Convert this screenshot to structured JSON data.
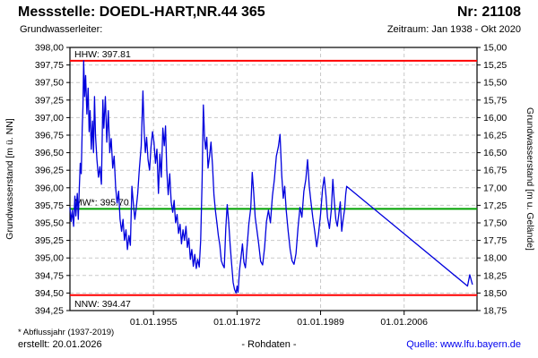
{
  "header": {
    "title": "Messstelle: DOEDL-HART,NR.44 365",
    "station_no": "Nr: 21108",
    "aquifer_label": "Grundwasserleiter:",
    "period": "Zeitraum: Jan 1938 - Okt 2020"
  },
  "footer": {
    "footnote": "* Abflussjahr (1937-2019)",
    "created": "erstellt:  20.01.2026",
    "center": "- Rohdaten -",
    "source": "Quelle: www.lfu.bayern.de"
  },
  "chart_data": {
    "type": "line",
    "title": "",
    "ylabel_left": "Grundwasserstand [m ü. NN]",
    "ylabel_right": "Grundwasserstand [m u. Gelände]",
    "ylim_left": [
      394.25,
      398.0
    ],
    "ylim_right": [
      18.75,
      15.0
    ],
    "xlim": [
      1938.0,
      2020.83
    ],
    "grid": true,
    "legend_position": "none",
    "x_ticks": [
      {
        "year": 1955,
        "label": "01.01.1955"
      },
      {
        "year": 1972,
        "label": "01.01.1972"
      },
      {
        "year": 1989,
        "label": "01.01.1989"
      },
      {
        "year": 2006,
        "label": "01.01.2006"
      }
    ],
    "y_ticks": [
      {
        "value": 398.0,
        "label_left": "398,00",
        "label_right": "15,00"
      },
      {
        "value": 397.75,
        "label_left": "397,75",
        "label_right": "15,25"
      },
      {
        "value": 397.5,
        "label_left": "397,50",
        "label_right": "15,50"
      },
      {
        "value": 397.25,
        "label_left": "397,25",
        "label_right": "15,75"
      },
      {
        "value": 397.0,
        "label_left": "397,00",
        "label_right": "16,00"
      },
      {
        "value": 396.75,
        "label_left": "396,75",
        "label_right": "16,25"
      },
      {
        "value": 396.5,
        "label_left": "396,50",
        "label_right": "16,50"
      },
      {
        "value": 396.25,
        "label_left": "396,25",
        "label_right": "16,75"
      },
      {
        "value": 396.0,
        "label_left": "396,00",
        "label_right": "17,00"
      },
      {
        "value": 395.75,
        "label_left": "395,75",
        "label_right": "17,25"
      },
      {
        "value": 395.5,
        "label_left": "395,50",
        "label_right": "17,50"
      },
      {
        "value": 395.25,
        "label_left": "395,25",
        "label_right": "17,75"
      },
      {
        "value": 395.0,
        "label_left": "395,00",
        "label_right": "18,00"
      },
      {
        "value": 394.75,
        "label_left": "394,75",
        "label_right": "18,25"
      },
      {
        "value": 394.5,
        "label_left": "394,50",
        "label_right": "18,50"
      },
      {
        "value": 394.25,
        "label_left": "394,25",
        "label_right": "18,75"
      }
    ],
    "reference_lines": [
      {
        "name": "HHW",
        "label": "HHW: 397.81",
        "value": 397.81,
        "color": "#ff0000",
        "label_side": "above"
      },
      {
        "name": "MW",
        "label": "MW*: 395.70",
        "value": 395.7,
        "color": "#00a000",
        "label_side": "above"
      },
      {
        "name": "NNW",
        "label": "NNW: 394.47",
        "value": 394.47,
        "color": "#ff0000",
        "label_side": "below"
      }
    ],
    "series": [
      {
        "name": "Grundwasserstand Rohdaten",
        "color": "#0000dd",
        "points": [
          [
            1938.0,
            395.72
          ],
          [
            1938.25,
            395.52
          ],
          [
            1938.5,
            395.68
          ],
          [
            1938.75,
            395.45
          ],
          [
            1939.0,
            395.88
          ],
          [
            1939.2,
            395.6
          ],
          [
            1939.5,
            395.92
          ],
          [
            1939.7,
            395.55
          ],
          [
            1939.9,
            395.98
          ],
          [
            1940.1,
            396.35
          ],
          [
            1940.3,
            396.2
          ],
          [
            1940.5,
            396.85
          ],
          [
            1940.65,
            397.15
          ],
          [
            1940.8,
            397.81
          ],
          [
            1941.0,
            397.3
          ],
          [
            1941.2,
            397.6
          ],
          [
            1941.45,
            397.05
          ],
          [
            1941.7,
            397.42
          ],
          [
            1941.9,
            396.8
          ],
          [
            1942.1,
            397.1
          ],
          [
            1942.35,
            396.55
          ],
          [
            1942.6,
            396.95
          ],
          [
            1942.8,
            396.5
          ],
          [
            1943.0,
            397.3
          ],
          [
            1943.2,
            396.75
          ],
          [
            1943.5,
            396.4
          ],
          [
            1943.8,
            396.15
          ],
          [
            1944.1,
            396.3
          ],
          [
            1944.4,
            396.05
          ],
          [
            1944.7,
            397.25
          ],
          [
            1944.9,
            396.85
          ],
          [
            1945.2,
            397.3
          ],
          [
            1945.5,
            396.65
          ],
          [
            1945.8,
            397.1
          ],
          [
            1946.1,
            396.5
          ],
          [
            1946.4,
            396.7
          ],
          [
            1946.7,
            396.28
          ],
          [
            1947.0,
            396.45
          ],
          [
            1947.3,
            396.0
          ],
          [
            1947.6,
            395.78
          ],
          [
            1947.9,
            395.95
          ],
          [
            1948.2,
            395.55
          ],
          [
            1948.5,
            395.38
          ],
          [
            1948.8,
            395.55
          ],
          [
            1949.1,
            395.25
          ],
          [
            1949.4,
            395.4
          ],
          [
            1949.7,
            395.12
          ],
          [
            1950.0,
            395.32
          ],
          [
            1950.3,
            395.18
          ],
          [
            1950.6,
            396.02
          ],
          [
            1950.9,
            395.78
          ],
          [
            1951.2,
            395.55
          ],
          [
            1951.5,
            395.72
          ],
          [
            1951.8,
            395.92
          ],
          [
            1952.1,
            396.25
          ],
          [
            1952.5,
            396.6
          ],
          [
            1952.85,
            397.38
          ],
          [
            1953.1,
            396.8
          ],
          [
            1953.35,
            396.5
          ],
          [
            1953.6,
            396.72
          ],
          [
            1953.9,
            396.4
          ],
          [
            1954.2,
            396.25
          ],
          [
            1954.5,
            396.58
          ],
          [
            1954.8,
            396.8
          ],
          [
            1955.1,
            396.65
          ],
          [
            1955.4,
            396.35
          ],
          [
            1955.7,
            396.55
          ],
          [
            1956.0,
            395.92
          ],
          [
            1956.3,
            396.48
          ],
          [
            1956.6,
            396.15
          ],
          [
            1956.9,
            396.85
          ],
          [
            1957.2,
            396.6
          ],
          [
            1957.45,
            396.88
          ],
          [
            1957.7,
            396.25
          ],
          [
            1958.0,
            395.9
          ],
          [
            1958.3,
            396.2
          ],
          [
            1958.6,
            395.8
          ],
          [
            1958.9,
            395.65
          ],
          [
            1959.2,
            395.82
          ],
          [
            1959.5,
            395.5
          ],
          [
            1959.8,
            395.62
          ],
          [
            1960.1,
            395.35
          ],
          [
            1960.4,
            395.48
          ],
          [
            1960.7,
            395.2
          ],
          [
            1961.0,
            395.4
          ],
          [
            1961.3,
            395.25
          ],
          [
            1961.6,
            395.45
          ],
          [
            1961.9,
            395.15
          ],
          [
            1962.2,
            395.28
          ],
          [
            1962.5,
            394.98
          ],
          [
            1962.8,
            395.12
          ],
          [
            1963.1,
            394.88
          ],
          [
            1963.4,
            395.05
          ],
          [
            1963.7,
            394.85
          ],
          [
            1964.0,
            394.98
          ],
          [
            1964.3,
            394.87
          ],
          [
            1964.6,
            395.25
          ],
          [
            1964.9,
            396.1
          ],
          [
            1965.15,
            397.18
          ],
          [
            1965.4,
            396.7
          ],
          [
            1965.6,
            396.55
          ],
          [
            1965.85,
            396.72
          ],
          [
            1966.1,
            396.28
          ],
          [
            1966.4,
            396.45
          ],
          [
            1966.7,
            396.65
          ],
          [
            1967.0,
            396.32
          ],
          [
            1967.3,
            395.9
          ],
          [
            1967.6,
            395.68
          ],
          [
            1967.9,
            395.5
          ],
          [
            1968.2,
            395.32
          ],
          [
            1968.5,
            395.18
          ],
          [
            1968.8,
            394.96
          ],
          [
            1969.1,
            394.9
          ],
          [
            1969.4,
            394.86
          ],
          [
            1969.7,
            395.42
          ],
          [
            1970.0,
            395.76
          ],
          [
            1970.3,
            395.52
          ],
          [
            1970.6,
            395.18
          ],
          [
            1970.9,
            394.92
          ],
          [
            1971.2,
            394.65
          ],
          [
            1971.5,
            394.55
          ],
          [
            1971.8,
            394.5
          ],
          [
            1972.0,
            394.6
          ],
          [
            1972.2,
            394.51
          ],
          [
            1972.5,
            394.82
          ],
          [
            1972.8,
            395.0
          ],
          [
            1973.1,
            395.2
          ],
          [
            1973.4,
            394.94
          ],
          [
            1973.7,
            394.86
          ],
          [
            1974.0,
            395.12
          ],
          [
            1974.4,
            395.48
          ],
          [
            1974.8,
            395.72
          ],
          [
            1975.1,
            396.22
          ],
          [
            1975.4,
            395.92
          ],
          [
            1975.7,
            395.58
          ],
          [
            1976.0,
            395.42
          ],
          [
            1976.4,
            395.2
          ],
          [
            1976.8,
            394.95
          ],
          [
            1977.2,
            394.9
          ],
          [
            1977.6,
            395.15
          ],
          [
            1978.0,
            395.52
          ],
          [
            1978.4,
            395.68
          ],
          [
            1978.8,
            395.5
          ],
          [
            1979.2,
            395.88
          ],
          [
            1979.6,
            396.12
          ],
          [
            1980.0,
            396.45
          ],
          [
            1980.4,
            396.58
          ],
          [
            1980.75,
            396.76
          ],
          [
            1981.1,
            396.18
          ],
          [
            1981.4,
            395.85
          ],
          [
            1981.7,
            396.02
          ],
          [
            1982.0,
            395.68
          ],
          [
            1982.4,
            395.38
          ],
          [
            1982.8,
            395.12
          ],
          [
            1983.2,
            394.96
          ],
          [
            1983.6,
            394.91
          ],
          [
            1984.0,
            395.06
          ],
          [
            1984.4,
            395.42
          ],
          [
            1984.8,
            395.72
          ],
          [
            1985.2,
            395.58
          ],
          [
            1985.6,
            395.95
          ],
          [
            1986.0,
            396.12
          ],
          [
            1986.35,
            396.4
          ],
          [
            1986.7,
            396.02
          ],
          [
            1987.0,
            395.82
          ],
          [
            1987.4,
            395.58
          ],
          [
            1987.8,
            395.38
          ],
          [
            1988.2,
            395.16
          ],
          [
            1988.6,
            395.35
          ],
          [
            1989.0,
            395.62
          ],
          [
            1989.4,
            395.98
          ],
          [
            1989.75,
            396.15
          ],
          [
            1990.1,
            395.88
          ],
          [
            1990.4,
            395.58
          ],
          [
            1990.8,
            395.42
          ],
          [
            1991.2,
            395.7
          ],
          [
            1991.5,
            396.12
          ],
          [
            1991.8,
            395.8
          ],
          [
            1992.1,
            395.55
          ],
          [
            1992.4,
            395.45
          ],
          [
            1992.7,
            395.62
          ],
          [
            1993.0,
            395.8
          ],
          [
            1993.3,
            395.38
          ],
          [
            1993.6,
            395.55
          ],
          [
            1993.9,
            395.7
          ],
          [
            1994.1,
            395.9
          ],
          [
            1994.3,
            396.02
          ],
          [
            2018.9,
            394.6
          ],
          [
            2019.35,
            394.76
          ],
          [
            2019.9,
            394.62
          ]
        ]
      }
    ]
  }
}
